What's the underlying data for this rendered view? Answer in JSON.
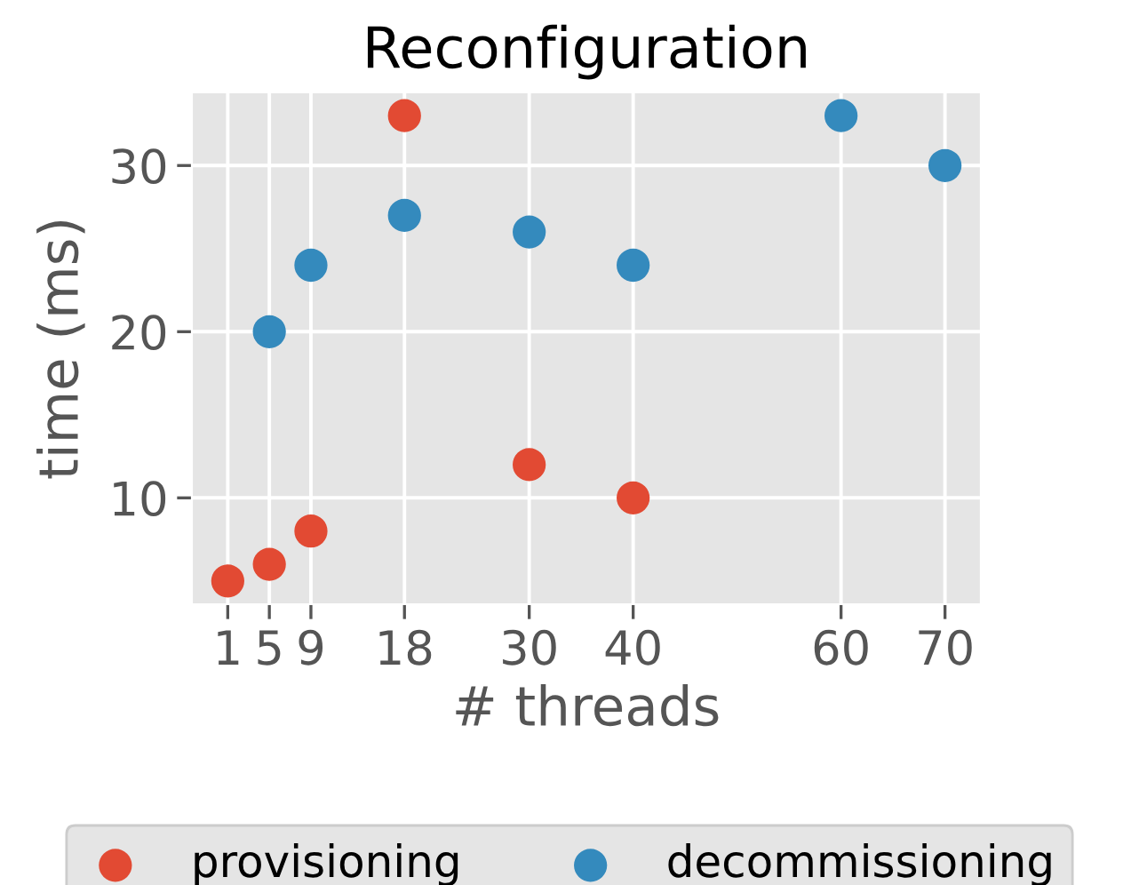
{
  "chart_data": {
    "type": "scatter",
    "title": "Reconfiguration",
    "xlabel": "# threads",
    "ylabel": "time (ms)",
    "series": [
      {
        "name": "provisioning",
        "color": "#e24a33",
        "x": [
          1,
          5,
          9,
          18,
          30,
          40
        ],
        "values": [
          5,
          6,
          8,
          33,
          12,
          10
        ]
      },
      {
        "name": "decommissioning",
        "color": "#348abd",
        "x": [
          5,
          9,
          18,
          30,
          40,
          60,
          70
        ],
        "values": [
          20,
          24,
          27,
          26,
          24,
          33,
          30
        ]
      }
    ],
    "xlim": [
      -2.45,
      73.45
    ],
    "ylim": [
      3.6,
      34.4
    ],
    "xticks": [
      1,
      5,
      9,
      18,
      30,
      40,
      60,
      70
    ],
    "yticks": [
      10,
      20,
      30
    ],
    "grid": true,
    "legend": "bottom",
    "marker": "circle"
  }
}
